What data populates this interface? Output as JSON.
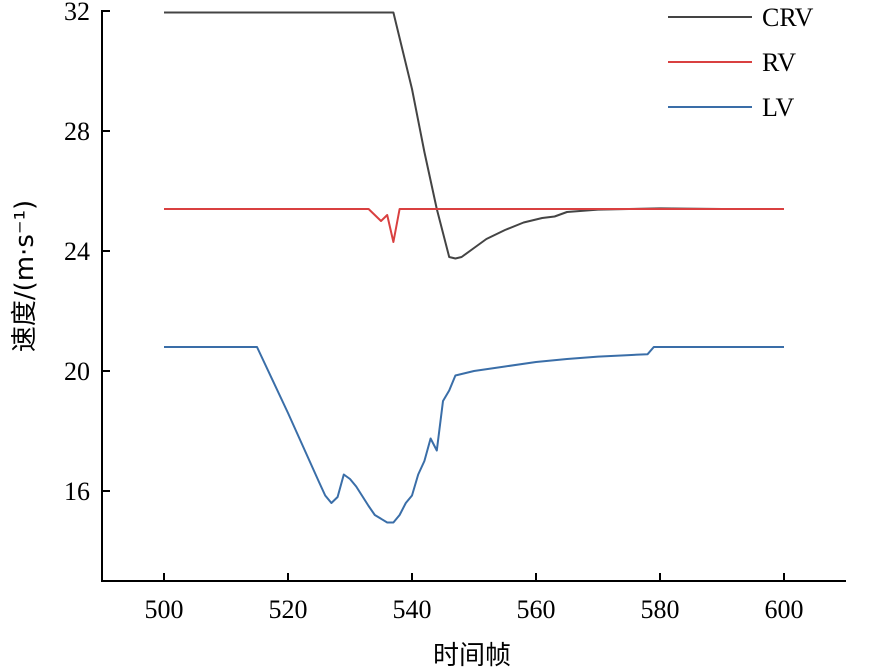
{
  "chart_data": {
    "type": "line",
    "title": "",
    "xlabel": "时间帧",
    "ylabel": "速度/(m·s⁻¹)",
    "xlim": [
      490,
      610
    ],
    "ylim": [
      13,
      32
    ],
    "xticks": [
      500,
      520,
      540,
      560,
      580,
      600
    ],
    "yticks": [
      16,
      20,
      24,
      28,
      32
    ],
    "grid": false,
    "legend_position": "top-right",
    "series": [
      {
        "name": "CRV",
        "color": "#444444",
        "x": [
          500,
          537,
          540,
          542,
          544,
          546,
          547,
          548,
          550,
          552,
          555,
          558,
          561,
          563,
          565,
          570,
          575,
          580,
          590,
          600
        ],
        "y": [
          31.95,
          31.95,
          29.4,
          27.3,
          25.4,
          23.8,
          23.75,
          23.8,
          24.1,
          24.4,
          24.7,
          24.95,
          25.1,
          25.15,
          25.3,
          25.38,
          25.4,
          25.42,
          25.4,
          25.4
        ]
      },
      {
        "name": "RV",
        "color": "#d94040",
        "x": [
          500,
          533,
          535,
          536,
          537,
          538,
          540,
          560,
          580,
          600
        ],
        "y": [
          25.4,
          25.4,
          25.0,
          25.2,
          24.3,
          25.4,
          25.4,
          25.4,
          25.4,
          25.4
        ]
      },
      {
        "name": "LV",
        "color": "#3a6ea8",
        "x": [
          500,
          515,
          520,
          525,
          526,
          527,
          528,
          529,
          530,
          531,
          533,
          534,
          536,
          537,
          538,
          539,
          540,
          541,
          542,
          543,
          544,
          545,
          546,
          547,
          550,
          555,
          560,
          565,
          570,
          575,
          578,
          579,
          590,
          600
        ],
        "y": [
          20.8,
          20.8,
          18.6,
          16.3,
          15.85,
          15.6,
          15.8,
          16.55,
          16.4,
          16.15,
          15.5,
          15.2,
          14.95,
          14.95,
          15.2,
          15.6,
          15.85,
          16.55,
          17.0,
          17.75,
          17.35,
          19.0,
          19.35,
          19.85,
          20.0,
          20.15,
          20.3,
          20.4,
          20.48,
          20.53,
          20.56,
          20.8,
          20.8,
          20.8
        ]
      }
    ]
  }
}
